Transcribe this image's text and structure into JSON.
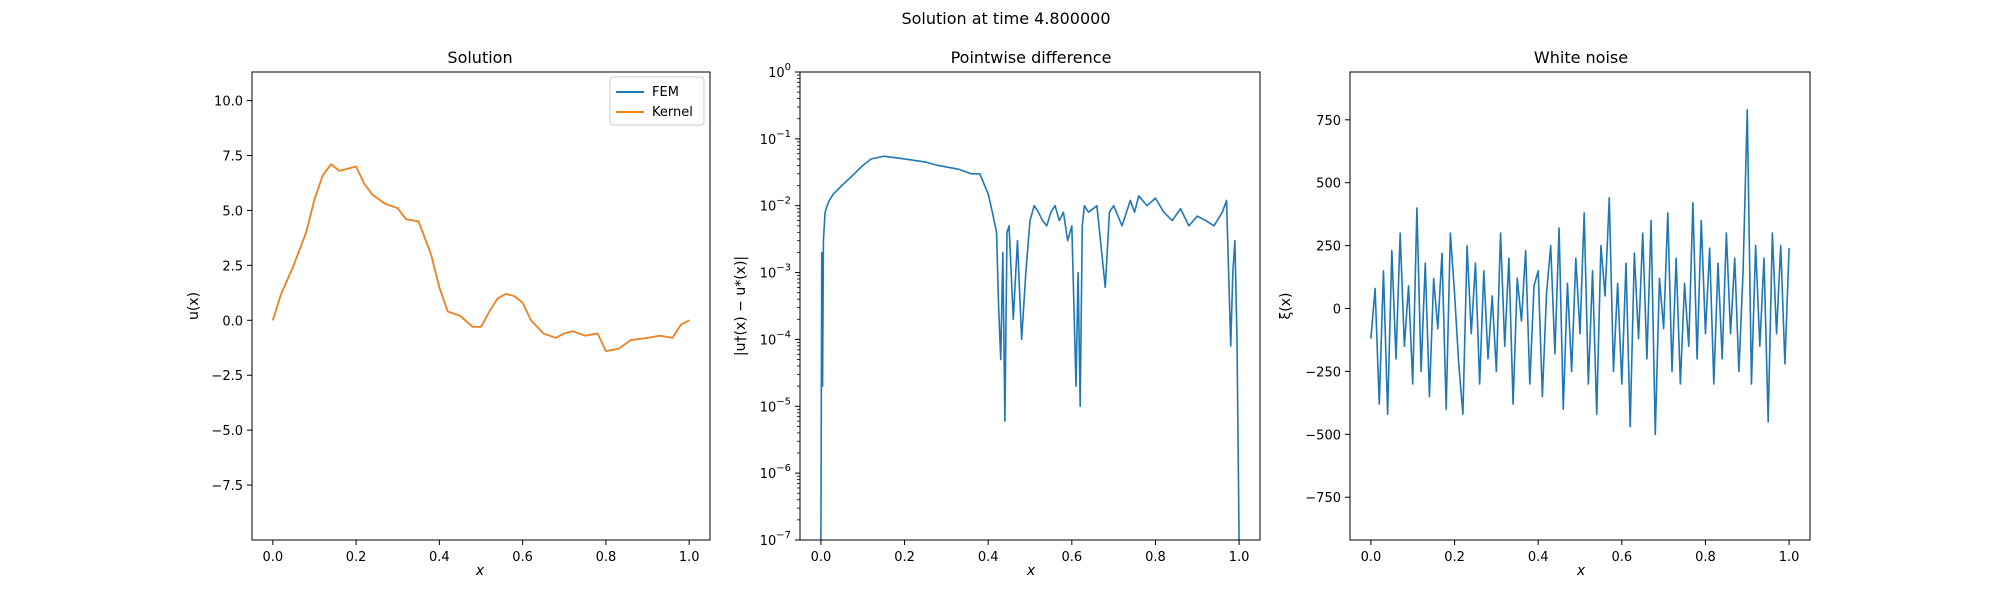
{
  "figure": {
    "suptitle": "Solution at time 4.800000"
  },
  "chart_data": [
    {
      "type": "line",
      "title": "Solution",
      "xlabel": "x",
      "ylabel": "u(x)",
      "xlim": [
        -0.05,
        1.05
      ],
      "ylim": [
        -10,
        11.3
      ],
      "xticks": [
        0.0,
        0.2,
        0.4,
        0.6,
        0.8,
        1.0
      ],
      "xtick_labels": [
        "0.0",
        "0.2",
        "0.4",
        "0.6",
        "0.8",
        "1.0"
      ],
      "yticks": [
        -7.5,
        -5.0,
        -2.5,
        0.0,
        2.5,
        5.0,
        7.5,
        10.0
      ],
      "ytick_labels": [
        "−7.5",
        "−5.0",
        "−2.5",
        "0.0",
        "2.5",
        "5.0",
        "7.5",
        "10.0"
      ],
      "legend": {
        "position": "top-right",
        "entries": [
          "FEM",
          "Kernel"
        ]
      },
      "series": [
        {
          "name": "FEM",
          "color": "#1f77b4",
          "x": [
            0.0,
            0.02,
            0.05,
            0.08,
            0.1,
            0.12,
            0.14,
            0.16,
            0.18,
            0.2,
            0.22,
            0.24,
            0.27,
            0.3,
            0.32,
            0.35,
            0.38,
            0.4,
            0.42,
            0.45,
            0.48,
            0.5,
            0.52,
            0.54,
            0.56,
            0.58,
            0.6,
            0.62,
            0.65,
            0.68,
            0.7,
            0.72,
            0.75,
            0.78,
            0.8,
            0.83,
            0.86,
            0.9,
            0.93,
            0.96,
            0.98,
            1.0
          ],
          "y": [
            0.0,
            1.2,
            2.5,
            4.0,
            5.5,
            6.6,
            7.1,
            6.8,
            6.9,
            7.0,
            6.2,
            5.7,
            5.3,
            5.1,
            4.6,
            4.5,
            3.0,
            1.5,
            0.4,
            0.2,
            -0.3,
            -0.3,
            0.4,
            1.0,
            1.2,
            1.1,
            0.8,
            0.0,
            -0.6,
            -0.8,
            -0.6,
            -0.5,
            -0.7,
            -0.6,
            -1.4,
            -1.3,
            -0.9,
            -0.8,
            -0.7,
            -0.8,
            -0.2,
            0.0
          ]
        },
        {
          "name": "Kernel",
          "color": "#ff7f0e",
          "x": [
            0.0,
            0.02,
            0.05,
            0.08,
            0.1,
            0.12,
            0.14,
            0.16,
            0.18,
            0.2,
            0.22,
            0.24,
            0.27,
            0.3,
            0.32,
            0.35,
            0.38,
            0.4,
            0.42,
            0.45,
            0.48,
            0.5,
            0.52,
            0.54,
            0.56,
            0.58,
            0.6,
            0.62,
            0.65,
            0.68,
            0.7,
            0.72,
            0.75,
            0.78,
            0.8,
            0.83,
            0.86,
            0.9,
            0.93,
            0.96,
            0.98,
            1.0
          ],
          "y": [
            0.0,
            1.2,
            2.5,
            4.0,
            5.5,
            6.6,
            7.1,
            6.8,
            6.9,
            7.0,
            6.2,
            5.7,
            5.3,
            5.1,
            4.6,
            4.5,
            3.0,
            1.5,
            0.4,
            0.2,
            -0.3,
            -0.3,
            0.4,
            1.0,
            1.2,
            1.1,
            0.8,
            0.0,
            -0.6,
            -0.8,
            -0.6,
            -0.5,
            -0.7,
            -0.6,
            -1.4,
            -1.3,
            -0.9,
            -0.8,
            -0.7,
            -0.8,
            -0.2,
            0.0
          ]
        }
      ]
    },
    {
      "type": "line",
      "title": "Pointwise difference",
      "xlabel": "x",
      "ylabel": "|u†(x) − u*(x)|",
      "yscale": "log",
      "xlim": [
        -0.05,
        1.05
      ],
      "ylim": [
        1e-07,
        1
      ],
      "xticks": [
        0.0,
        0.2,
        0.4,
        0.6,
        0.8,
        1.0
      ],
      "xtick_labels": [
        "0.0",
        "0.2",
        "0.4",
        "0.6",
        "0.8",
        "1.0"
      ],
      "yticks": [
        1e-07,
        1e-06,
        1e-05,
        0.0001,
        0.001,
        0.01,
        0.1,
        1
      ],
      "ytick_labels": [
        {
          "base": "10",
          "exp": "−7"
        },
        {
          "base": "10",
          "exp": "−6"
        },
        {
          "base": "10",
          "exp": "−5"
        },
        {
          "base": "10",
          "exp": "−4"
        },
        {
          "base": "10",
          "exp": "−3"
        },
        {
          "base": "10",
          "exp": "−2"
        },
        {
          "base": "10",
          "exp": "−1"
        },
        {
          "base": "10",
          "exp": "0"
        }
      ],
      "series": [
        {
          "color": "#1f77b4",
          "x": [
            0.0,
            0.002,
            0.004,
            0.006,
            0.008,
            0.01,
            0.015,
            0.02,
            0.03,
            0.05,
            0.08,
            0.1,
            0.12,
            0.15,
            0.18,
            0.2,
            0.22,
            0.25,
            0.28,
            0.3,
            0.33,
            0.36,
            0.38,
            0.4,
            0.41,
            0.42,
            0.425,
            0.43,
            0.435,
            0.44,
            0.445,
            0.45,
            0.46,
            0.47,
            0.48,
            0.49,
            0.5,
            0.51,
            0.52,
            0.53,
            0.54,
            0.55,
            0.56,
            0.57,
            0.58,
            0.59,
            0.6,
            0.61,
            0.615,
            0.62,
            0.625,
            0.63,
            0.64,
            0.66,
            0.68,
            0.69,
            0.7,
            0.72,
            0.74,
            0.75,
            0.76,
            0.78,
            0.8,
            0.82,
            0.84,
            0.86,
            0.88,
            0.9,
            0.92,
            0.94,
            0.96,
            0.97,
            0.98,
            0.985,
            0.99,
            0.995,
            1.0
          ],
          "y": [
            1e-07,
            0.002,
            2e-05,
            0.003,
            0.005,
            0.008,
            0.01,
            0.012,
            0.015,
            0.02,
            0.03,
            0.04,
            0.05,
            0.055,
            0.052,
            0.05,
            0.048,
            0.045,
            0.04,
            0.038,
            0.035,
            0.03,
            0.03,
            0.015,
            0.008,
            0.004,
            0.0003,
            5e-05,
            0.002,
            6e-06,
            0.004,
            0.005,
            0.0002,
            0.003,
            0.0001,
            0.001,
            0.006,
            0.01,
            0.008,
            0.006,
            0.005,
            0.008,
            0.01,
            0.006,
            0.008,
            0.003,
            0.005,
            2e-05,
            0.001,
            1e-05,
            0.005,
            0.01,
            0.008,
            0.01,
            0.0006,
            0.008,
            0.01,
            0.005,
            0.012,
            0.008,
            0.014,
            0.01,
            0.013,
            0.008,
            0.006,
            0.009,
            0.005,
            0.007,
            0.006,
            0.005,
            0.008,
            0.012,
            8e-05,
            0.001,
            0.003,
            0.0001,
            1e-07
          ]
        }
      ]
    },
    {
      "type": "line",
      "title": "White noise",
      "xlabel": "x",
      "ylabel": "ξ(x)",
      "xlim": [
        -0.05,
        1.05
      ],
      "ylim": [
        -920,
        940
      ],
      "xticks": [
        0.0,
        0.2,
        0.4,
        0.6,
        0.8,
        1.0
      ],
      "xtick_labels": [
        "0.0",
        "0.2",
        "0.4",
        "0.6",
        "0.8",
        "1.0"
      ],
      "yticks": [
        -750,
        -500,
        -250,
        0,
        250,
        500,
        750
      ],
      "ytick_labels": [
        "−750",
        "−500",
        "−250",
        "0",
        "250",
        "500",
        "750"
      ],
      "series": [
        {
          "color": "#1f77b4",
          "x": [
            0.0,
            0.01,
            0.02,
            0.03,
            0.04,
            0.05,
            0.06,
            0.07,
            0.08,
            0.09,
            0.1,
            0.11,
            0.12,
            0.13,
            0.14,
            0.15,
            0.16,
            0.17,
            0.18,
            0.19,
            0.2,
            0.21,
            0.22,
            0.23,
            0.24,
            0.25,
            0.26,
            0.27,
            0.28,
            0.29,
            0.3,
            0.31,
            0.32,
            0.33,
            0.34,
            0.35,
            0.36,
            0.37,
            0.38,
            0.39,
            0.4,
            0.41,
            0.42,
            0.43,
            0.44,
            0.45,
            0.46,
            0.47,
            0.48,
            0.49,
            0.5,
            0.51,
            0.52,
            0.53,
            0.54,
            0.55,
            0.56,
            0.57,
            0.58,
            0.59,
            0.6,
            0.61,
            0.62,
            0.63,
            0.64,
            0.65,
            0.66,
            0.67,
            0.68,
            0.69,
            0.7,
            0.71,
            0.72,
            0.73,
            0.74,
            0.75,
            0.76,
            0.77,
            0.78,
            0.79,
            0.8,
            0.81,
            0.82,
            0.83,
            0.84,
            0.85,
            0.86,
            0.87,
            0.88,
            0.89,
            0.9,
            0.91,
            0.92,
            0.93,
            0.94,
            0.95,
            0.96,
            0.97,
            0.98,
            0.99,
            1.0
          ],
          "y": [
            -120,
            80,
            -380,
            150,
            -420,
            230,
            -200,
            300,
            -150,
            90,
            -300,
            400,
            -250,
            180,
            -350,
            120,
            -80,
            220,
            -400,
            300,
            60,
            -220,
            -420,
            250,
            -100,
            180,
            -300,
            150,
            -200,
            50,
            -250,
            300,
            -150,
            200,
            -380,
            120,
            -50,
            230,
            -300,
            90,
            150,
            -350,
            60,
            250,
            -180,
            320,
            -400,
            100,
            -250,
            200,
            -100,
            380,
            -300,
            150,
            -420,
            250,
            50,
            440,
            -250,
            100,
            -300,
            180,
            -470,
            220,
            -120,
            300,
            -200,
            350,
            -500,
            120,
            -80,
            380,
            -250,
            200,
            -300,
            100,
            -150,
            420,
            -200,
            350,
            -100,
            240,
            -300,
            180,
            -200,
            300,
            -100,
            200,
            -250,
            150,
            790,
            -300,
            250,
            -150,
            200,
            -450,
            300,
            -100,
            250,
            -220,
            240
          ]
        }
      ]
    }
  ]
}
